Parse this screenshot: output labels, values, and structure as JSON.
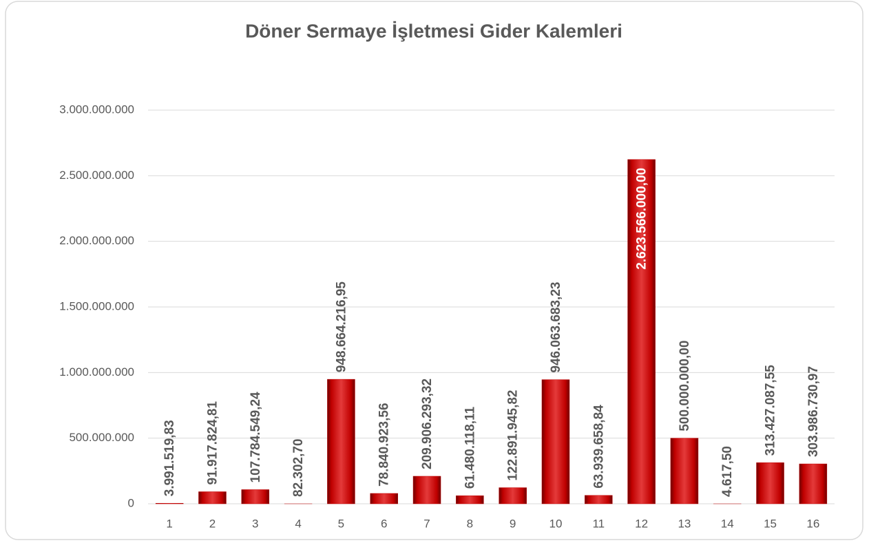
{
  "chart_data": {
    "type": "bar",
    "title": "Döner Sermaye İşletmesi Gider Kalemleri",
    "categories": [
      "1",
      "2",
      "3",
      "4",
      "5",
      "6",
      "7",
      "8",
      "9",
      "10",
      "11",
      "12",
      "13",
      "14",
      "15",
      "16"
    ],
    "values": [
      3991519.83,
      91917824.81,
      107784549.24,
      82302.7,
      948664216.95,
      78840923.56,
      209906293.32,
      61480118.11,
      122891945.82,
      946063683.23,
      63939658.84,
      2623566000.0,
      500000000.0,
      4617.5,
      313427087.55,
      303986730.97
    ],
    "value_labels": [
      "3.991.519,83",
      "91.917.824,81",
      "107.784.549,24",
      "82.302,70",
      "948.664.216,95",
      "78.840.923,56",
      "209.906.293,32",
      "61.480.118,11",
      "122.891.945,82",
      "946.063.683,23",
      "63.939.658,84",
      "2.623.566.000,00",
      "500.000.000,00",
      "4.617,50",
      "313.427.087,55",
      "303.986.730,97"
    ],
    "color": "#c00000",
    "ylim": [
      0,
      3000000000
    ],
    "yticks": [
      0,
      {
        "value": 500000000,
        "label": "500.000.000"
      },
      {
        "value": 1000000000,
        "label": "1.000.000.000"
      },
      {
        "value": 1500000000,
        "label": "1.500.000.000"
      },
      {
        "value": 2000000000,
        "label": "2.000.000.000"
      },
      {
        "value": 2500000000,
        "label": "2.500.000.000"
      },
      {
        "value": 3000000000,
        "label": "3.000.000.000"
      }
    ],
    "grid": true
  }
}
